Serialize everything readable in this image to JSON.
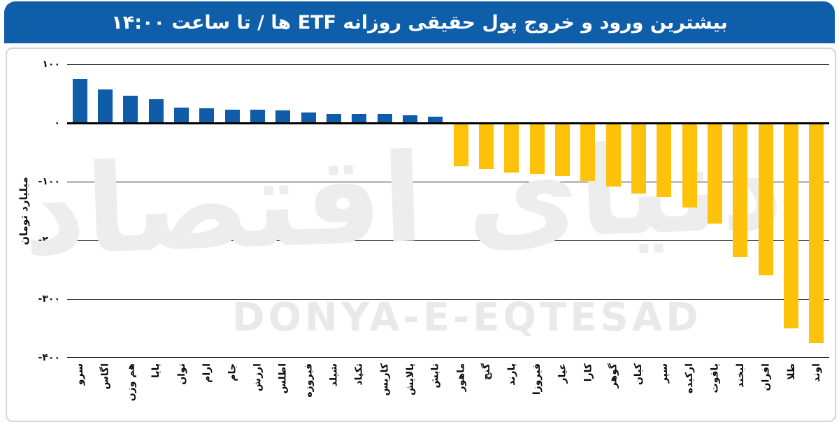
{
  "header": {
    "title": "بیشترین ورود و خروج پول حقیقی روزانه ETF ها / تا ساعت ۱۴:۰۰",
    "bg_color": "#0F5EA9",
    "text_color": "#FFFFFF"
  },
  "watermark": {
    "fa": "دنیای اقتصاد",
    "en": "DONYA-E-EQTESAD"
  },
  "chart_data": {
    "type": "bar",
    "title": "بیشترین ورود و خروج پول حقیقی روزانه ETF ها / تا ساعت ۱۴:۰۰",
    "ylabel": "میلیارد تومان",
    "ylim": [
      -400,
      100
    ],
    "grid": true,
    "legend": "none",
    "bar_colors": {
      "positive": "#0F5CA8",
      "negative": "#FEC20B"
    },
    "y_ticks": [
      {
        "value": 100,
        "label": "۱۰۰"
      },
      {
        "value": 0,
        "label": "۰"
      },
      {
        "value": -100,
        "label": "-۱۰۰"
      },
      {
        "value": -200,
        "label": "-۲۰۰"
      },
      {
        "value": -300,
        "label": "-۳۰۰"
      },
      {
        "value": -400,
        "label": "-۴۰۰"
      }
    ],
    "categories": [
      "سرو",
      "اگاس",
      "هم وزن",
      "پایا",
      "توان",
      "ارام",
      "جام",
      "ارزش",
      "اطلس",
      "فیروزه",
      "شیلد",
      "تکپاد",
      "کاریس",
      "پالایش",
      "تابش",
      "ماهور",
      "گنج",
      "پارند",
      "فیروزا",
      "عیار",
      "کارا",
      "گوهر",
      "کیان",
      "سپر",
      "ارکیده",
      "یاقوت",
      "لبخند",
      "افران",
      "طلا",
      "اوند"
    ],
    "values": [
      75,
      57,
      47,
      40,
      26,
      25,
      23,
      23,
      22,
      18,
      16,
      16,
      15,
      13,
      11,
      -74,
      -79,
      -84,
      -87,
      -90,
      -99,
      -108,
      -120,
      -126,
      -144,
      -172,
      -229,
      -260,
      -350,
      -375
    ]
  }
}
